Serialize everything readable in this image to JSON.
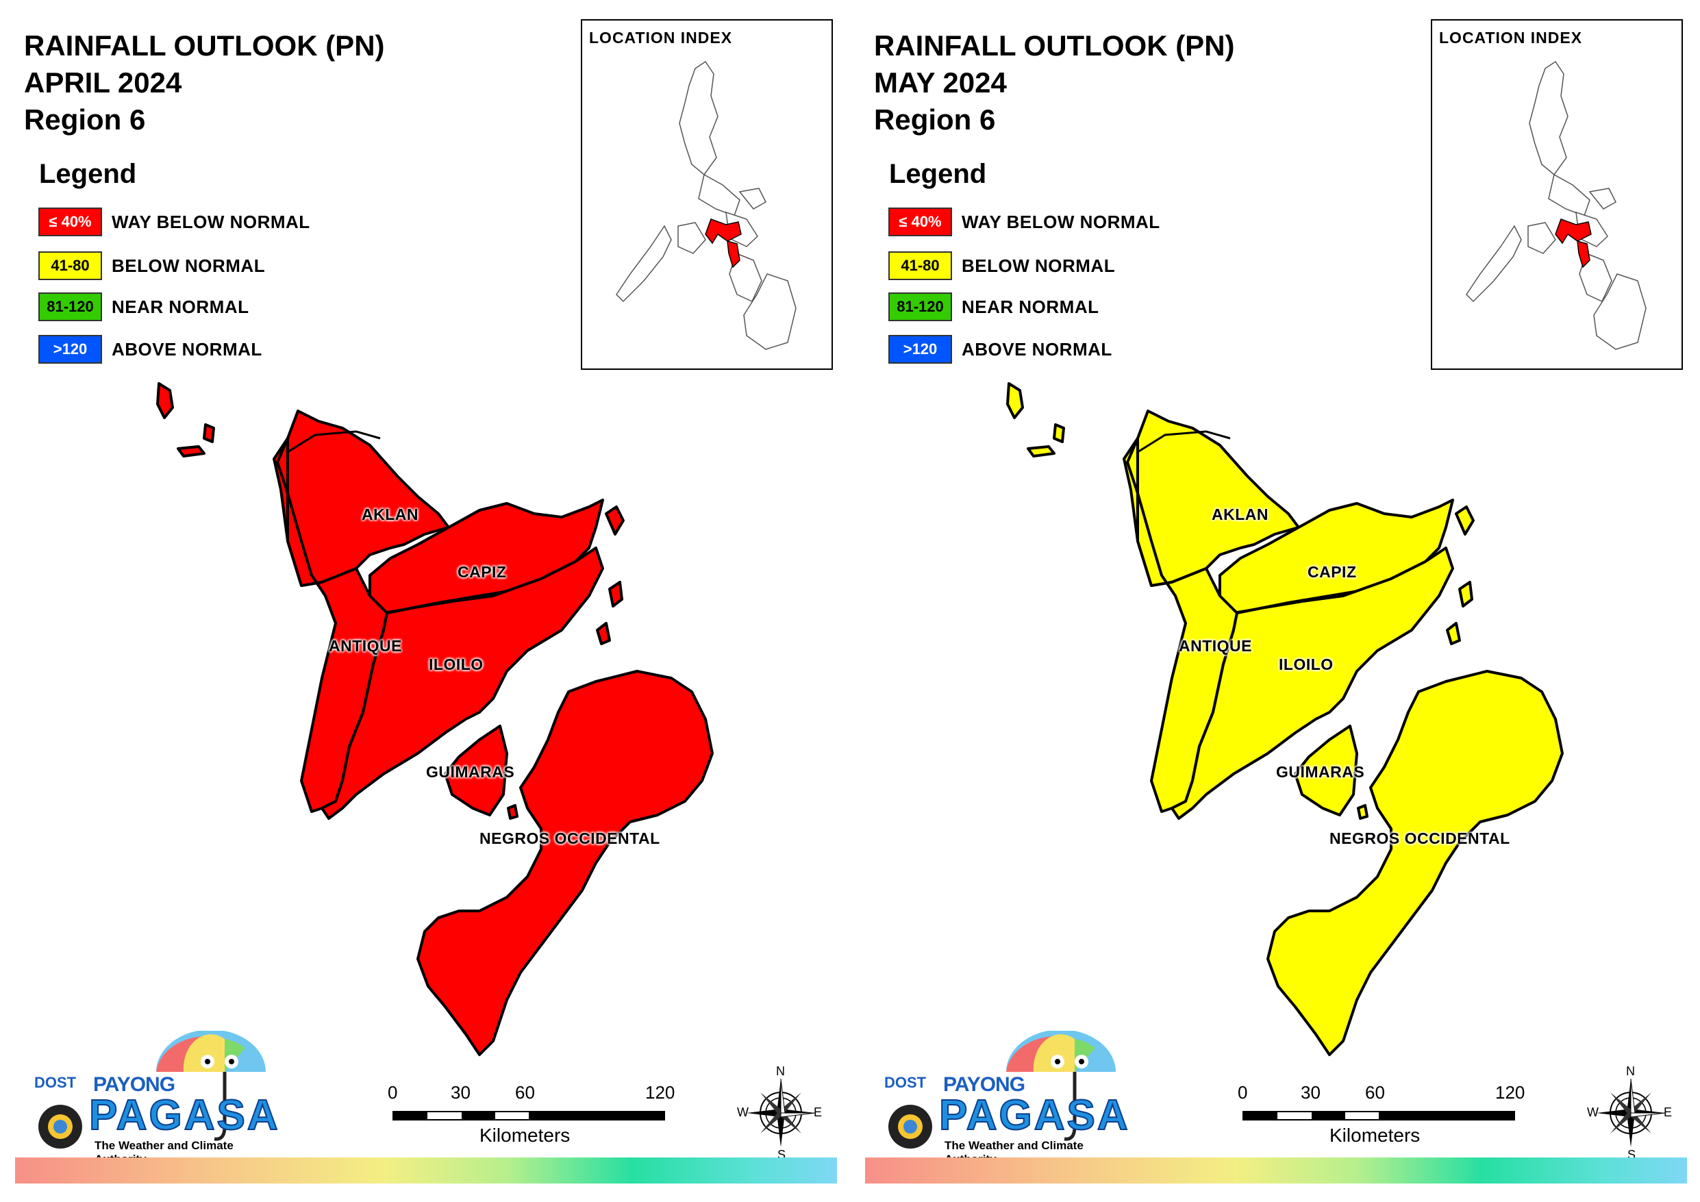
{
  "colors": {
    "way_below": "#ff0000",
    "below": "#ffff00",
    "near": "#33cc00",
    "above": "#0055ff",
    "outline": "#000000"
  },
  "legend": {
    "title": "Legend",
    "items": [
      {
        "range": "≤ 40%",
        "label": "WAY BELOW NORMAL",
        "color": "#ff0000",
        "text_color": "#ffffff"
      },
      {
        "range": "41-80",
        "label": "BELOW NORMAL",
        "color": "#ffff00",
        "text_color": "#000000"
      },
      {
        "range": "81-120",
        "label": "NEAR NORMAL",
        "color": "#33cc00",
        "text_color": "#000000"
      },
      {
        "range": ">120",
        "label": "ABOVE NORMAL",
        "color": "#0055ff",
        "text_color": "#ffffff"
      }
    ]
  },
  "inset_title": "LOCATION INDEX",
  "provinces": [
    "AKLAN",
    "CAPIZ",
    "ANTIQUE",
    "ILOILO",
    "GUIMARAS",
    "NEGROS OCCIDENTAL"
  ],
  "scale": {
    "ticks": [
      "0",
      "30",
      "60",
      "120"
    ],
    "unit": "Kilometers"
  },
  "compass": {
    "n": "N",
    "s": "S",
    "e": "E",
    "w": "W"
  },
  "logo": {
    "dost": "DOST",
    "payong": "PAYONG",
    "pagasa": "PAGASA",
    "tagline": "The Weather and Climate Authority"
  },
  "panels": [
    {
      "title_line1": "RAINFALL OUTLOOK (PN)",
      "title_line2": "APRIL 2024",
      "title_line3": "Region 6",
      "category": "WAY BELOW NORMAL",
      "fill": "#ff0000"
    },
    {
      "title_line1": "RAINFALL OUTLOOK (PN)",
      "title_line2": "MAY 2024",
      "title_line3": "Region 6",
      "category": "BELOW NORMAL",
      "fill": "#ffff00"
    }
  ]
}
